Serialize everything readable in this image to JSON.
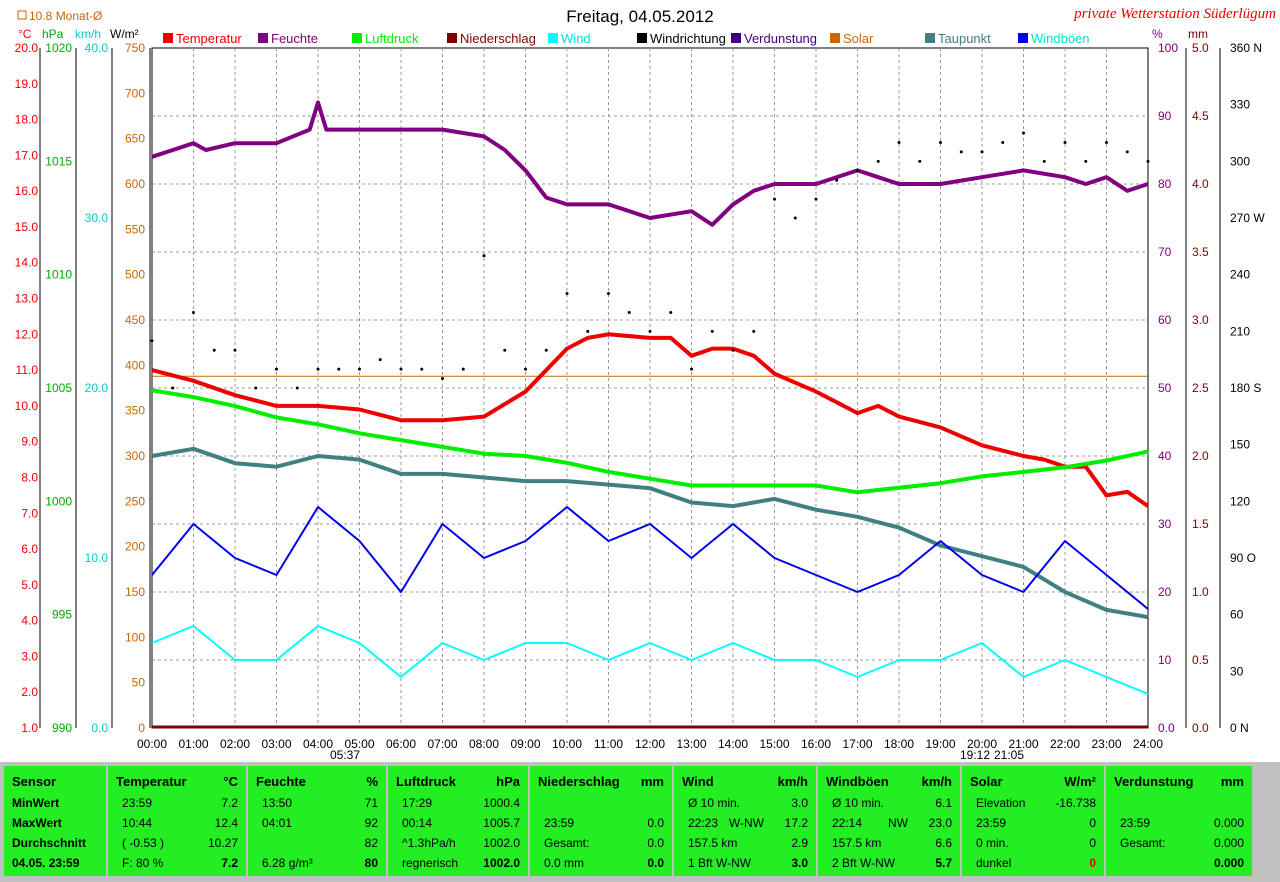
{
  "title": "Freitag, 04.05.2012",
  "station": "private Wetterstation Süderlügum",
  "top_left_note": "10.8 Monat-Ø",
  "legend": [
    {
      "label": "Temperatur",
      "color": "#ee0000"
    },
    {
      "label": "Feuchte",
      "color": "#800080"
    },
    {
      "label": "Luftdruck",
      "color": "#00ee00"
    },
    {
      "label": "Niederschlag",
      "color": "#800000"
    },
    {
      "label": "Wind",
      "color": "#00ffff"
    },
    {
      "label": "Windrichtung",
      "color": "#000000"
    },
    {
      "label": "Verdunstung",
      "color": "#400080"
    },
    {
      "label": "Solar",
      "color": "#cc6600"
    },
    {
      "label": "Taupunkt",
      "color": "#408080"
    },
    {
      "label": "Windböen",
      "color": "#0000ee"
    }
  ],
  "axis_units": {
    "temp": "°C",
    "hpa": "hPa",
    "kmh": "km/h",
    "wm2": "W/m²",
    "pct": "%",
    "mm": "mm"
  },
  "sun_times": {
    "sunrise": "05:37",
    "sunset": "19:12",
    "twilight_end": "21:05"
  },
  "chart_data": {
    "type": "line",
    "x_labels": [
      "00:00",
      "01:00",
      "02:00",
      "03:00",
      "04:00",
      "05:00",
      "06:00",
      "07:00",
      "08:00",
      "09:00",
      "10:00",
      "11:00",
      "12:00",
      "13:00",
      "14:00",
      "15:00",
      "16:00",
      "17:00",
      "18:00",
      "19:00",
      "20:00",
      "21:00",
      "22:00",
      "23:00",
      "24:00"
    ],
    "axes": {
      "temp": {
        "unit": "°C",
        "range": [
          1.0,
          20.0
        ],
        "ticks": [
          "20.0",
          "19.0",
          "18.0",
          "17.0",
          "16.0",
          "15.0",
          "14.0",
          "13.0",
          "12.0",
          "11.0",
          "10.0",
          "9.0",
          "8.0",
          "7.0",
          "6.0",
          "5.0",
          "4.0",
          "3.0",
          "2.0",
          "1.0"
        ]
      },
      "pressure": {
        "unit": "hPa",
        "range": [
          990,
          1020
        ],
        "ticks": [
          "1020",
          "1015",
          "1010",
          "1005",
          "1000",
          "995",
          "990"
        ]
      },
      "wind": {
        "unit": "km/h",
        "range": [
          0,
          40
        ],
        "ticks": [
          "40.0",
          "30.0",
          "20.0",
          "10.0",
          "0.0"
        ]
      },
      "solar": {
        "unit": "W/m²",
        "range": [
          0,
          750
        ],
        "ticks": [
          "750",
          "700",
          "650",
          "600",
          "550",
          "500",
          "450",
          "400",
          "350",
          "300",
          "250",
          "200",
          "150",
          "100",
          "50",
          "0"
        ]
      },
      "humidity": {
        "unit": "%",
        "range": [
          0,
          100
        ],
        "ticks": [
          "100",
          "90",
          "80",
          "70",
          "60",
          "50",
          "40",
          "30",
          "20",
          "10",
          "0.0"
        ]
      },
      "rain": {
        "unit": "mm",
        "range": [
          0,
          5
        ],
        "ticks": [
          "5.0",
          "4.5",
          "4.0",
          "3.5",
          "3.0",
          "2.5",
          "2.0",
          "1.5",
          "1.0",
          "0.5",
          "0.0"
        ]
      },
      "direction": {
        "unit": "°",
        "range": [
          0,
          360
        ],
        "ticks": [
          "360 N",
          "330",
          "300",
          "270 W",
          "240",
          "210",
          "180 S",
          "150",
          "120",
          "90 O",
          "60",
          "30",
          "0 N"
        ]
      }
    },
    "series": [
      {
        "name": "Temperatur",
        "axis": "temp",
        "x": [
          0,
          1,
          2,
          3,
          4,
          5,
          6,
          7,
          8,
          9,
          10,
          10.5,
          11,
          12,
          12.5,
          13,
          13.5,
          14,
          14.5,
          15,
          16,
          16.5,
          17,
          17.5,
          18,
          19,
          20,
          21,
          21.5,
          22,
          22.5,
          23,
          23.5,
          24
        ],
        "y": [
          11.0,
          10.7,
          10.3,
          10.0,
          10.0,
          9.9,
          9.6,
          9.6,
          9.7,
          10.4,
          11.6,
          11.9,
          12.0,
          11.9,
          11.9,
          11.4,
          11.6,
          11.6,
          11.4,
          10.9,
          10.4,
          10.1,
          9.8,
          10.0,
          9.7,
          9.4,
          8.9,
          8.6,
          8.5,
          8.3,
          8.3,
          7.5,
          7.6,
          7.2
        ]
      },
      {
        "name": "Feuchte",
        "axis": "humidity",
        "x": [
          0,
          0.5,
          1,
          1.3,
          2,
          3,
          3.8,
          4.0,
          4.2,
          5,
          6,
          7,
          8,
          8.5,
          9,
          9.5,
          10,
          11,
          12,
          13,
          13.5,
          14,
          14.5,
          15,
          16,
          17,
          17.5,
          18,
          19,
          20,
          21,
          22,
          22.5,
          23,
          23.5,
          24
        ],
        "y": [
          84,
          85,
          86,
          85,
          86,
          86,
          88,
          92,
          88,
          88,
          88,
          88,
          87,
          85,
          82,
          78,
          77,
          77,
          75,
          76,
          74,
          77,
          79,
          80,
          80,
          82,
          81,
          80,
          80,
          81,
          82,
          81,
          80,
          81,
          79,
          80
        ]
      },
      {
        "name": "Luftdruck",
        "axis": "pressure",
        "x": [
          0,
          1,
          2,
          3,
          4,
          5,
          6,
          7,
          8,
          9,
          10,
          11,
          12,
          13,
          14,
          15,
          16,
          17,
          18,
          19,
          20,
          21,
          22,
          23,
          24
        ],
        "y": [
          1004.9,
          1004.6,
          1004.2,
          1003.7,
          1003.4,
          1003.0,
          1002.7,
          1002.4,
          1002.1,
          1002.0,
          1001.7,
          1001.3,
          1001.0,
          1000.7,
          1000.7,
          1000.7,
          1000.7,
          1000.4,
          1000.6,
          1000.8,
          1001.1,
          1001.3,
          1001.5,
          1001.8,
          1002.2
        ]
      },
      {
        "name": "Taupunkt",
        "axis": "temp",
        "x": [
          0,
          1,
          2,
          3,
          4,
          5,
          6,
          7,
          8,
          9,
          10,
          11,
          12,
          13,
          14,
          15,
          16,
          17,
          18,
          19,
          20,
          21,
          22,
          23,
          24
        ],
        "y": [
          8.6,
          8.8,
          8.4,
          8.3,
          8.6,
          8.5,
          8.1,
          8.1,
          8.0,
          7.9,
          7.9,
          7.8,
          7.7,
          7.3,
          7.2,
          7.4,
          7.1,
          6.9,
          6.6,
          6.1,
          5.8,
          5.5,
          4.8,
          4.3,
          4.1
        ]
      },
      {
        "name": "Windrichtung",
        "axis": "direction",
        "x": [
          0,
          0.5,
          1,
          1.5,
          2,
          2.5,
          3,
          3.5,
          4,
          4.5,
          5,
          5.5,
          6,
          6.5,
          7,
          7.5,
          8,
          8.5,
          9,
          9.5,
          10,
          10.5,
          11,
          11.5,
          12,
          12.5,
          13,
          13.5,
          14,
          14.5,
          15,
          15.5,
          16,
          16.5,
          17,
          17.5,
          18,
          18.5,
          19,
          19.5,
          20,
          20.5,
          21,
          21.5,
          22,
          22.5,
          23,
          23.5,
          24
        ],
        "y": [
          205,
          180,
          220,
          200,
          200,
          180,
          190,
          180,
          190,
          190,
          190,
          195,
          190,
          190,
          185,
          190,
          250,
          200,
          190,
          200,
          230,
          210,
          230,
          220,
          210,
          220,
          190,
          210,
          200,
          210,
          280,
          270,
          280,
          290,
          295,
          300,
          310,
          300,
          310,
          305,
          305,
          310,
          315,
          300,
          310,
          300,
          310,
          305,
          300
        ]
      },
      {
        "name": "Wind",
        "axis": "wind",
        "x": [
          0,
          1,
          2,
          3,
          4,
          5,
          6,
          7,
          8,
          9,
          10,
          11,
          12,
          13,
          14,
          15,
          16,
          17,
          18,
          19,
          20,
          21,
          22,
          23,
          24
        ],
        "y": [
          5,
          6,
          4,
          4,
          6,
          5,
          3,
          5,
          4,
          5,
          5,
          4,
          5,
          4,
          5,
          4,
          4,
          3,
          4,
          4,
          5,
          3,
          4,
          3,
          2
        ]
      },
      {
        "name": "Windböen",
        "axis": "wind",
        "x": [
          0,
          1,
          2,
          3,
          4,
          5,
          6,
          7,
          8,
          9,
          10,
          11,
          12,
          13,
          14,
          15,
          16,
          17,
          18,
          19,
          20,
          21,
          22,
          23,
          24
        ],
        "y": [
          9,
          12,
          10,
          9,
          13,
          11,
          8,
          12,
          10,
          11,
          13,
          11,
          12,
          10,
          12,
          10,
          9,
          8,
          9,
          11,
          9,
          8,
          11,
          9,
          7
        ]
      }
    ],
    "solar_level_line": {
      "axis": "solar",
      "value": 388
    }
  },
  "table": {
    "cols": [
      {
        "title": "Sensor",
        "unit": "",
        "rows": [
          [
            "MinWert",
            "",
            ""
          ],
          [
            "MaxWert",
            "",
            ""
          ],
          [
            "Durchschnitt",
            "",
            ""
          ],
          [
            "04.05. 23:59",
            "",
            ""
          ]
        ],
        "boldcol0": true
      },
      {
        "title": "Temperatur",
        "unit": "°C",
        "rows": [
          [
            "23:59",
            "",
            "7.2"
          ],
          [
            "10:44",
            "",
            "12.4"
          ],
          [
            "( -0.53 )",
            "",
            "10.27"
          ],
          [
            "F: 80 %",
            "",
            "7.2"
          ]
        ]
      },
      {
        "title": "Feuchte",
        "unit": "%",
        "rows": [
          [
            "13:50",
            "",
            "71"
          ],
          [
            "04:01",
            "",
            "92"
          ],
          [
            "",
            "",
            "82"
          ],
          [
            "6.28 g/m³",
            "",
            "80"
          ]
        ]
      },
      {
        "title": "Luftdruck",
        "unit": "hPa",
        "rows": [
          [
            "17:29",
            "",
            "1000.4"
          ],
          [
            "00:14",
            "",
            "1005.7"
          ],
          [
            "^1.3hPa/h",
            "",
            "1002.0"
          ],
          [
            "regnerisch",
            "",
            "1002.0"
          ]
        ]
      },
      {
        "title": "Niederschlag",
        "unit": "mm",
        "rows": [
          [
            "",
            "",
            ""
          ],
          [
            "23:59",
            "",
            "0.0"
          ],
          [
            "Gesamt:",
            "",
            "0.0"
          ],
          [
            "0.0 mm",
            "",
            "0.0"
          ]
        ]
      },
      {
        "title": "Wind",
        "unit": "km/h",
        "rows": [
          [
            "Ø 10 min.",
            "",
            "3.0"
          ],
          [
            "22:23",
            "W-NW",
            "17.2"
          ],
          [
            "157.5 km",
            "",
            "2.9"
          ],
          [
            "1 Bft W-NW",
            "",
            "3.0"
          ]
        ]
      },
      {
        "title": "Windböen",
        "unit": "km/h",
        "rows": [
          [
            "Ø 10 min.",
            "",
            "6.1"
          ],
          [
            "22:14",
            "NW",
            "23.0"
          ],
          [
            "157.5 km",
            "",
            "6.6"
          ],
          [
            "2 Bft W-NW",
            "",
            "5.7"
          ]
        ]
      },
      {
        "title": "Solar",
        "unit": "W/m²",
        "rows": [
          [
            "Elevation",
            "",
            "-16.738"
          ],
          [
            "23:59",
            "",
            "0"
          ],
          [
            "0 min.",
            "",
            "0"
          ],
          [
            "dunkel",
            "",
            "0"
          ]
        ]
      },
      {
        "title": "Verdunstung",
        "unit": "mm",
        "rows": [
          [
            "",
            "",
            ""
          ],
          [
            "23:59",
            "",
            "0.000"
          ],
          [
            "Gesamt:",
            "",
            "0.000"
          ],
          [
            "",
            "",
            "0.000"
          ]
        ]
      }
    ]
  }
}
